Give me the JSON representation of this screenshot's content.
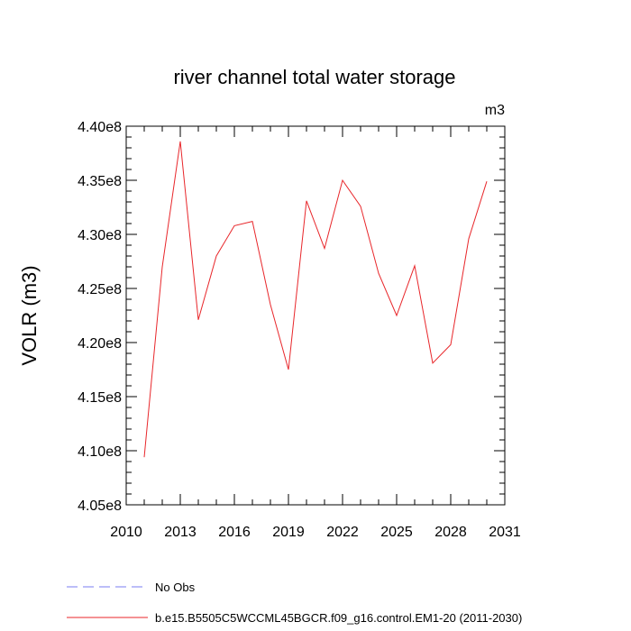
{
  "chart_data": {
    "type": "line",
    "title": "river channel total water storage",
    "units_label": "m3",
    "ylabel": "VOLR  (m3)",
    "xlabel": "",
    "xlim": [
      2010,
      2031
    ],
    "ylim": [
      405000000,
      440000000
    ],
    "x_ticks": [
      2010,
      2013,
      2016,
      2019,
      2022,
      2025,
      2028,
      2031
    ],
    "y_ticks": [
      405000000,
      410000000,
      415000000,
      420000000,
      425000000,
      430000000,
      435000000,
      440000000
    ],
    "y_tick_labels": [
      "4.05e8",
      "4.10e8",
      "4.15e8",
      "4.20e8",
      "4.25e8",
      "4.30e8",
      "4.35e8",
      "4.40e8"
    ],
    "grid": false,
    "legend_position": "bottom",
    "series": [
      {
        "name": "b.e15.B5505C5WCCML45BGCR.f09_g16.control.EM1-20 (2011-2030)",
        "color": "#e8262a",
        "style": "solid",
        "x": [
          2011,
          2012,
          2013,
          2014,
          2015,
          2016,
          2017,
          2018,
          2019,
          2020,
          2021,
          2022,
          2023,
          2024,
          2025,
          2026,
          2027,
          2028,
          2029,
          2030
        ],
        "y": [
          409400000,
          427000000,
          438600000,
          422100000,
          428000000,
          430800000,
          431200000,
          423500000,
          417500000,
          433100000,
          428700000,
          435000000,
          432600000,
          426400000,
          422500000,
          427100000,
          418100000,
          419800000,
          429600000,
          434900000
        ]
      }
    ],
    "legend": [
      {
        "label": "No Obs",
        "color": "#7a7cf0",
        "style": "dashed"
      },
      {
        "label": "b.e15.B5505C5WCCML45BGCR.f09_g16.control.EM1-20 (2011-2030)",
        "color": "#e8262a",
        "style": "solid"
      }
    ]
  }
}
